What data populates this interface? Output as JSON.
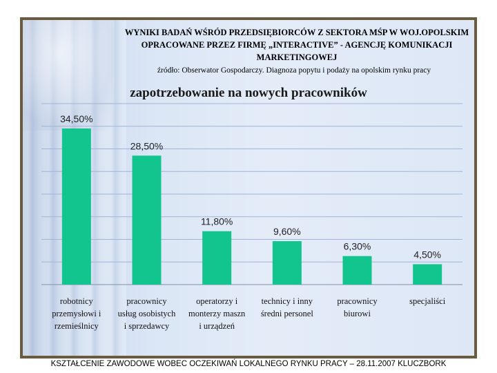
{
  "slide": {
    "title": "WYNIKI BADAŃ WŚRÓD PRZEDSIĘBIORCÓW Z SEKTORA MŚP W WOJ.OPOLSKIM OPRACOWANE PRZEZ FIRMĘ „INTERACTIVE” - AGENCJĘ KOMUNIKACJI MARKETINGOWEJ",
    "source": "źródło: Obserwator Gospodarczy. Diagnoza popytu i podaży na opolskim rynku pracy",
    "footer": "KSZTAŁCENIE ZAWODOWE WOBEC OCZEKIWAŃ LOKALNEGO RYNKU PRACY – 28.11.2007 KLUCZBORK"
  },
  "chart_data": {
    "type": "bar",
    "title": "zapotrzebowanie na nowych pracowników",
    "categories": [
      [
        "robotnicy",
        "przemysłowi i",
        "rzemieślnicy"
      ],
      [
        "pracownicy",
        "usług osobistych",
        "i sprzedawcy"
      ],
      [
        "operatorzy i",
        "monterzy maszn",
        "i urządzeń"
      ],
      [
        "technicy i inny",
        "średni personel"
      ],
      [
        "pracownicy",
        "biurowi"
      ],
      [
        "specjaliści"
      ]
    ],
    "values": [
      34.5,
      28.5,
      11.8,
      9.6,
      6.3,
      4.5
    ],
    "data_labels": [
      "34,50%",
      "28,50%",
      "11,80%",
      "9,60%",
      "6,30%",
      "4,50%"
    ],
    "ylim": [
      0,
      40
    ],
    "grid": true,
    "bar_color": "#12c48e",
    "grid_color": "#9fb4d6"
  }
}
